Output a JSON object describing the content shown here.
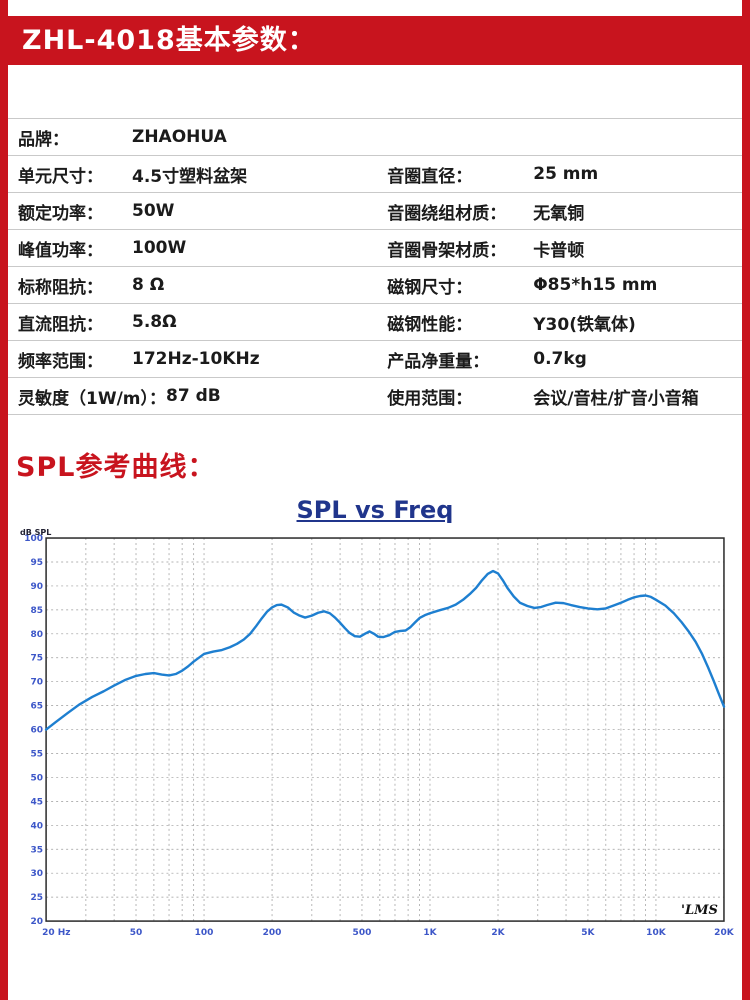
{
  "page": {
    "accent_color": "#c8141e",
    "banner_title": "ZHL-4018基本参数：",
    "section2_title": "SPL参考曲线："
  },
  "specs": {
    "rows": [
      {
        "l_label": "品牌：",
        "l_value": "ZHAOHUA",
        "r_label": "",
        "r_value": ""
      },
      {
        "l_label": "单元尺寸：",
        "l_value": "4.5寸塑料盆架",
        "r_label": "音圈直径：",
        "r_value": "25 mm"
      },
      {
        "l_label": "额定功率：",
        "l_value": "50W",
        "r_label": "音圈绕组材质：",
        "r_value": "无氧铜"
      },
      {
        "l_label": "峰值功率：",
        "l_value": "100W",
        "r_label": "音圈骨架材质：",
        "r_value": "卡普顿"
      },
      {
        "l_label": "标称阻抗：",
        "l_value": "8 Ω",
        "r_label": "磁钢尺寸：",
        "r_value": "Φ85*h15 mm"
      },
      {
        "l_label": "直流阻抗：",
        "l_value": "5.8Ω",
        "r_label": "磁钢性能：",
        "r_value": "Y30(铁氧体)"
      },
      {
        "l_label": "频率范围：",
        "l_value": "172Hz-10KHz",
        "r_label": "产品净重量：",
        "r_value": "0.7kg"
      },
      {
        "l_label": "灵敏度（1W/m）：",
        "l_value": "87 dB",
        "r_label": "使用范围：",
        "r_value": "会议/音柱/扩音小音箱"
      }
    ]
  },
  "chart_data": {
    "type": "line",
    "title": "SPL vs Freq",
    "ylabel": "dB SPL",
    "xlabel": "",
    "x_scale": "log",
    "xlim": [
      20,
      20000
    ],
    "ylim": [
      20,
      100
    ],
    "y_tick_step": 5,
    "x_tick_values": [
      20,
      50,
      100,
      200,
      500,
      1000,
      2000,
      5000,
      10000,
      20000
    ],
    "x_tick_labels": [
      "20 Hz",
      "50",
      "100",
      "200",
      "500",
      "1K",
      "2K",
      "5K",
      "10K",
      "20K"
    ],
    "grid": true,
    "legend": "none",
    "watermark": "'LMS",
    "line_color": "#1e7fd0",
    "axis_label_color": "#3d57c8",
    "title_color": "#20358c",
    "series": [
      {
        "name": "SPL",
        "points": [
          [
            20,
            60
          ],
          [
            22,
            61.5
          ],
          [
            25,
            63.5
          ],
          [
            28,
            65.2
          ],
          [
            32,
            66.8
          ],
          [
            36,
            68
          ],
          [
            40,
            69.2
          ],
          [
            45,
            70.4
          ],
          [
            50,
            71.2
          ],
          [
            55,
            71.6
          ],
          [
            60,
            71.8
          ],
          [
            65,
            71.5
          ],
          [
            70,
            71.3
          ],
          [
            75,
            71.6
          ],
          [
            80,
            72.3
          ],
          [
            85,
            73.2
          ],
          [
            90,
            74.2
          ],
          [
            100,
            75.8
          ],
          [
            110,
            76.3
          ],
          [
            120,
            76.6
          ],
          [
            130,
            77.2
          ],
          [
            140,
            77.9
          ],
          [
            150,
            78.8
          ],
          [
            160,
            80
          ],
          [
            170,
            81.6
          ],
          [
            180,
            83.2
          ],
          [
            190,
            84.6
          ],
          [
            200,
            85.5
          ],
          [
            210,
            86
          ],
          [
            220,
            86.1
          ],
          [
            235,
            85.5
          ],
          [
            250,
            84.4
          ],
          [
            265,
            83.8
          ],
          [
            280,
            83.4
          ],
          [
            300,
            83.8
          ],
          [
            320,
            84.4
          ],
          [
            340,
            84.7
          ],
          [
            360,
            84.3
          ],
          [
            380,
            83.4
          ],
          [
            400,
            82.3
          ],
          [
            420,
            81.2
          ],
          [
            440,
            80.2
          ],
          [
            465,
            79.5
          ],
          [
            490,
            79.4
          ],
          [
            515,
            80
          ],
          [
            540,
            80.5
          ],
          [
            565,
            80
          ],
          [
            590,
            79.4
          ],
          [
            620,
            79.3
          ],
          [
            660,
            79.7
          ],
          [
            700,
            80.4
          ],
          [
            740,
            80.6
          ],
          [
            780,
            80.7
          ],
          [
            820,
            81.4
          ],
          [
            860,
            82.4
          ],
          [
            900,
            83.3
          ],
          [
            950,
            83.9
          ],
          [
            1000,
            84.3
          ],
          [
            1100,
            84.9
          ],
          [
            1200,
            85.4
          ],
          [
            1300,
            86.1
          ],
          [
            1400,
            87.1
          ],
          [
            1500,
            88.3
          ],
          [
            1600,
            89.6
          ],
          [
            1700,
            91.2
          ],
          [
            1800,
            92.5
          ],
          [
            1900,
            93.1
          ],
          [
            2000,
            92.6
          ],
          [
            2100,
            91.2
          ],
          [
            2200,
            89.6
          ],
          [
            2350,
            87.8
          ],
          [
            2500,
            86.5
          ],
          [
            2700,
            85.8
          ],
          [
            2900,
            85.4
          ],
          [
            3100,
            85.6
          ],
          [
            3300,
            86
          ],
          [
            3600,
            86.5
          ],
          [
            3900,
            86.4
          ],
          [
            4200,
            86
          ],
          [
            4600,
            85.6
          ],
          [
            5000,
            85.3
          ],
          [
            5500,
            85.1
          ],
          [
            6000,
            85.3
          ],
          [
            6500,
            85.9
          ],
          [
            7000,
            86.5
          ],
          [
            7500,
            87.1
          ],
          [
            8000,
            87.6
          ],
          [
            8500,
            87.9
          ],
          [
            9000,
            88
          ],
          [
            9500,
            87.7
          ],
          [
            10000,
            87.1
          ],
          [
            11000,
            85.9
          ],
          [
            12000,
            84.3
          ],
          [
            13000,
            82.4
          ],
          [
            14000,
            80.4
          ],
          [
            15000,
            78.3
          ],
          [
            16000,
            75.8
          ],
          [
            17000,
            73
          ],
          [
            18000,
            70.2
          ],
          [
            19000,
            67.4
          ],
          [
            20000,
            64.8
          ]
        ]
      }
    ]
  }
}
